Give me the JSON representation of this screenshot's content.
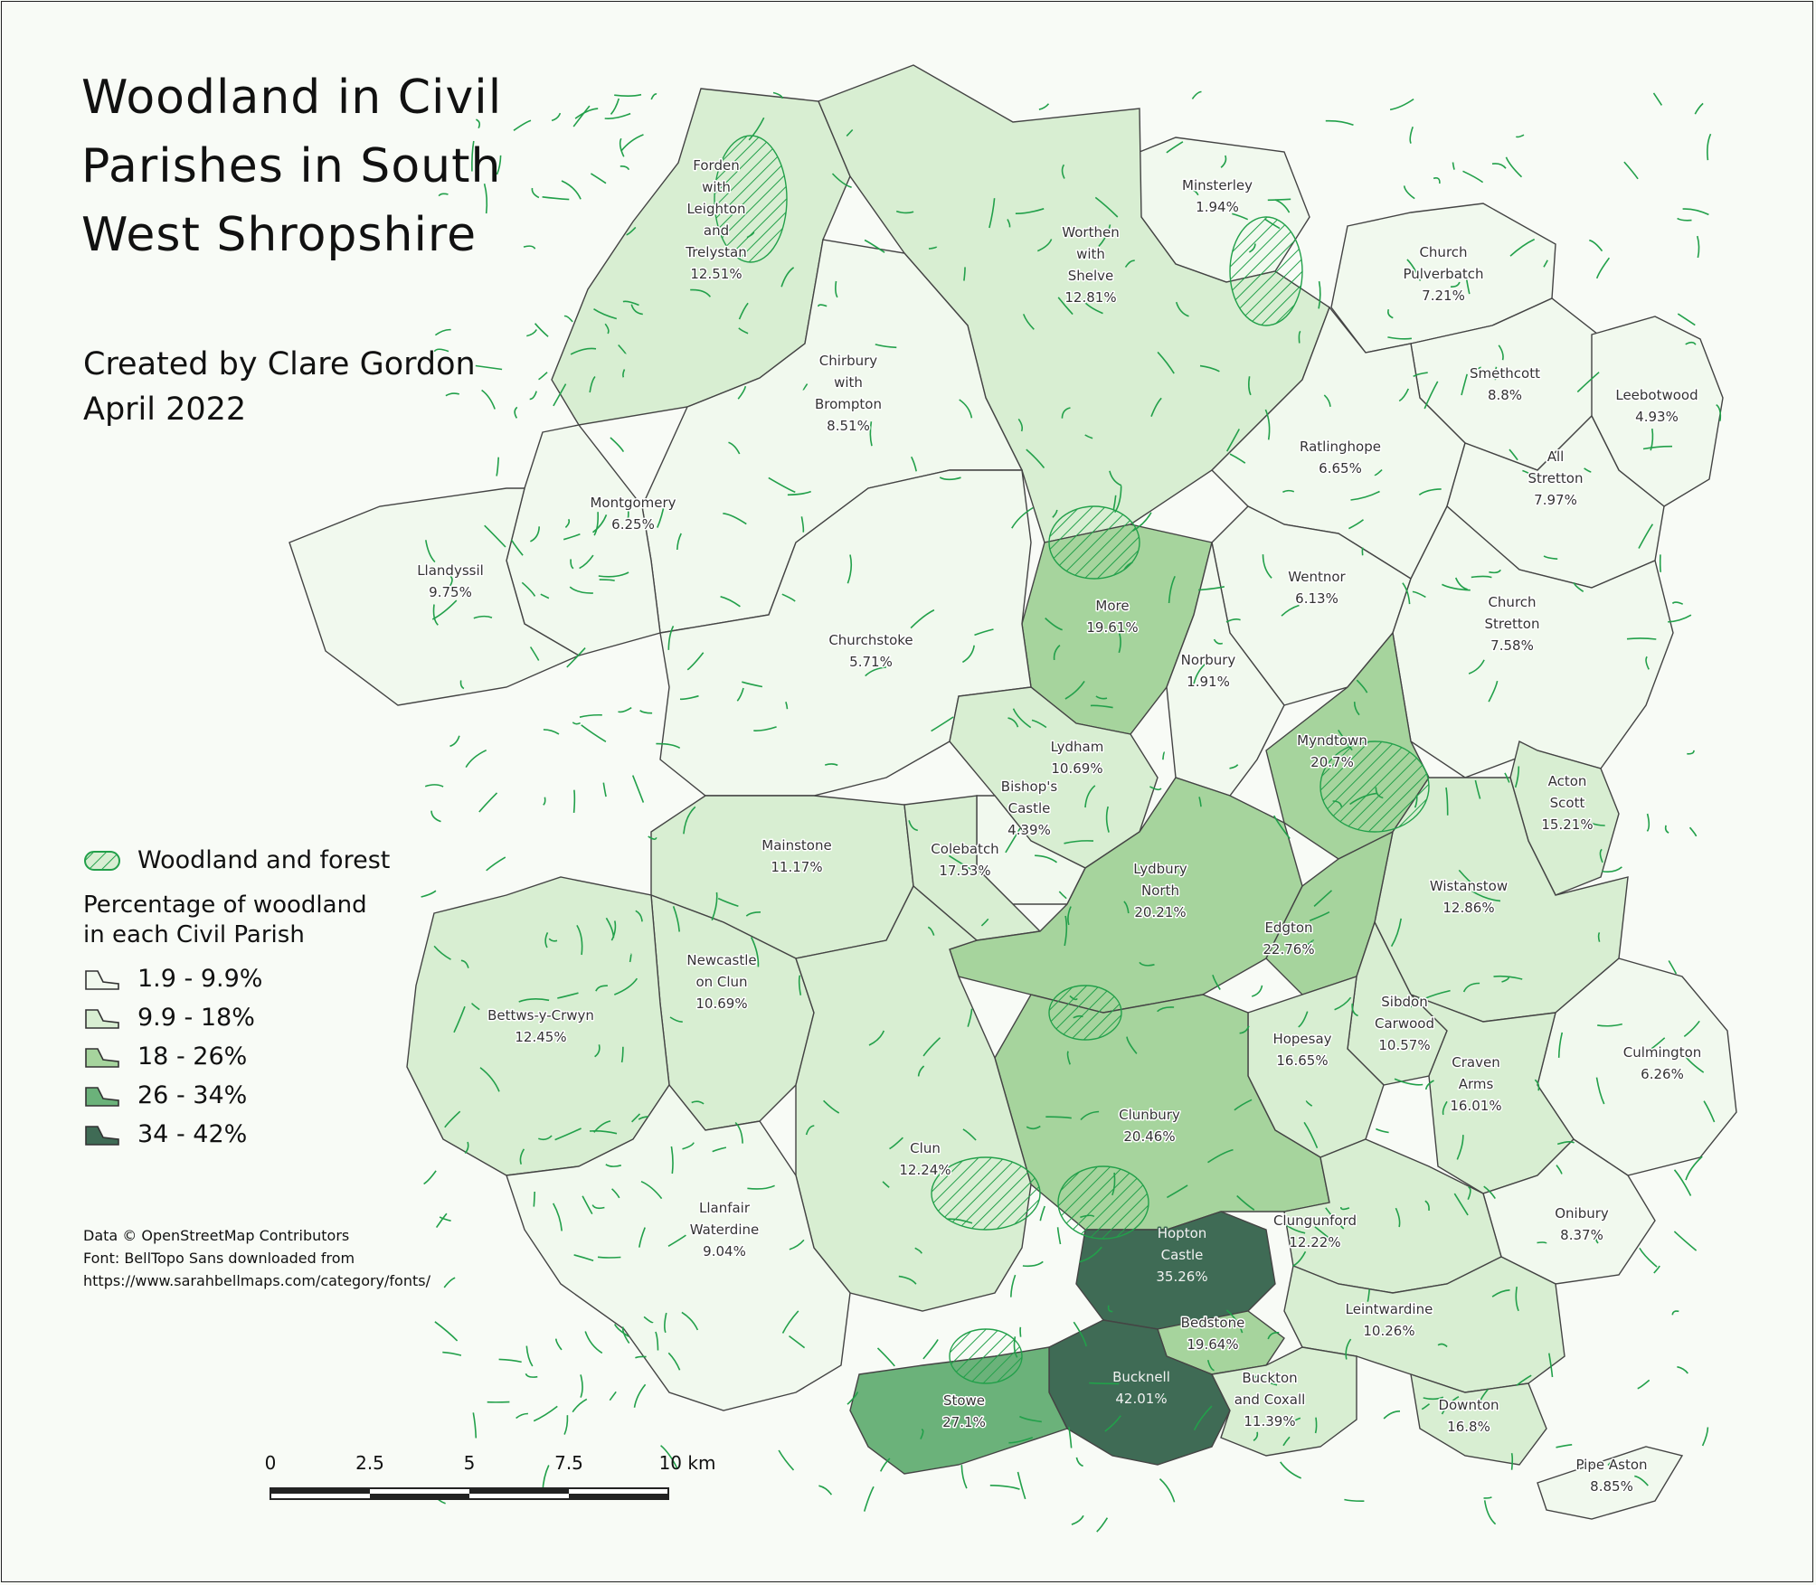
{
  "title_lines": [
    "Woodland in Civil",
    "Parishes in South",
    "West Shropshire"
  ],
  "credit_lines": [
    "Created by Clare Gordon",
    "April 2022"
  ],
  "legend": {
    "woodland_label": "Woodland and forest",
    "heading_lines": [
      "Percentage of woodland",
      "in each Civil Parish"
    ],
    "classes": [
      {
        "label": "1.9 - 9.9%",
        "color": "#f1f9ee"
      },
      {
        "label": "9.9 - 18%",
        "color": "#d8eed2"
      },
      {
        "label": "18 - 26%",
        "color": "#a6d49d"
      },
      {
        "label": "26 - 34%",
        "color": "#6bb27a"
      },
      {
        "label": "34 - 42%",
        "color": "#3f6b55"
      }
    ],
    "hatch_color": "#22a04a"
  },
  "source_lines": [
    "Data © OpenStreetMap Contributors",
    "Font: BellTopo Sans downloaded from",
    "https://www.sarahbellmaps.com/category/fonts/"
  ],
  "scale_bar": {
    "ticks": [
      "0",
      "2.5",
      "5",
      "7.5",
      "10 km"
    ]
  },
  "parishes": [
    {
      "id": "forden",
      "name_lines": [
        "Forden",
        "with",
        "Leighton",
        "and",
        "Trelystan"
      ],
      "pct": "12.51%",
      "value": 12.51
    },
    {
      "id": "minsterley",
      "name_lines": [
        "Minsterley"
      ],
      "pct": "1.94%",
      "value": 1.94
    },
    {
      "id": "worthen",
      "name_lines": [
        "Worthen",
        "with",
        "Shelve"
      ],
      "pct": "12.81%",
      "value": 12.81
    },
    {
      "id": "pulverbatch",
      "name_lines": [
        "Church",
        "Pulverbatch"
      ],
      "pct": "7.21%",
      "value": 7.21
    },
    {
      "id": "smethcott",
      "name_lines": [
        "Smethcott"
      ],
      "pct": "8.8%",
      "value": 8.8
    },
    {
      "id": "leebotwood",
      "name_lines": [
        "Leebotwood"
      ],
      "pct": "4.93%",
      "value": 4.93
    },
    {
      "id": "chirbury",
      "name_lines": [
        "Chirbury",
        "with",
        "Brompton"
      ],
      "pct": "8.51%",
      "value": 8.51
    },
    {
      "id": "ratlinghope",
      "name_lines": [
        "Ratlinghope"
      ],
      "pct": "6.65%",
      "value": 6.65
    },
    {
      "id": "allstretton",
      "name_lines": [
        "All",
        "Stretton"
      ],
      "pct": "7.97%",
      "value": 7.97
    },
    {
      "id": "montgomery",
      "name_lines": [
        "Montgomery"
      ],
      "pct": "6.25%",
      "value": 6.25
    },
    {
      "id": "llandyssil",
      "name_lines": [
        "Llandyssil"
      ],
      "pct": "9.75%",
      "value": 9.75
    },
    {
      "id": "more",
      "name_lines": [
        "More"
      ],
      "pct": "19.61%",
      "value": 19.61
    },
    {
      "id": "wentnor",
      "name_lines": [
        "Wentnor"
      ],
      "pct": "6.13%",
      "value": 6.13
    },
    {
      "id": "churchstretton",
      "name_lines": [
        "Church",
        "Stretton"
      ],
      "pct": "7.58%",
      "value": 7.58
    },
    {
      "id": "churchstoke",
      "name_lines": [
        "Churchstoke"
      ],
      "pct": "5.71%",
      "value": 5.71
    },
    {
      "id": "norbury",
      "name_lines": [
        "Norbury"
      ],
      "pct": "1.91%",
      "value": 1.91
    },
    {
      "id": "myndtown",
      "name_lines": [
        "Myndtown"
      ],
      "pct": "20.7%",
      "value": 20.7
    },
    {
      "id": "lydham",
      "name_lines": [
        "Lydham"
      ],
      "pct": "10.69%",
      "value": 10.69
    },
    {
      "id": "bishopscastle",
      "name_lines": [
        "Bishop's",
        "Castle"
      ],
      "pct": "4.39%",
      "value": 4.39
    },
    {
      "id": "actonscott",
      "name_lines": [
        "Acton",
        "Scott"
      ],
      "pct": "15.21%",
      "value": 15.21
    },
    {
      "id": "mainstone",
      "name_lines": [
        "Mainstone"
      ],
      "pct": "11.17%",
      "value": 11.17
    },
    {
      "id": "colebatch",
      "name_lines": [
        "Colebatch"
      ],
      "pct": "17.53%",
      "value": 17.53
    },
    {
      "id": "lydburynorth",
      "name_lines": [
        "Lydbury",
        "North"
      ],
      "pct": "20.21%",
      "value": 20.21
    },
    {
      "id": "wistanstow",
      "name_lines": [
        "Wistanstow"
      ],
      "pct": "12.86%",
      "value": 12.86
    },
    {
      "id": "edgton",
      "name_lines": [
        "Edgton"
      ],
      "pct": "22.76%",
      "value": 22.76
    },
    {
      "id": "newcastle",
      "name_lines": [
        "Newcastle",
        "on Clun"
      ],
      "pct": "10.69%",
      "value": 10.69
    },
    {
      "id": "bettws",
      "name_lines": [
        "Bettws-y-Crwyn"
      ],
      "pct": "12.45%",
      "value": 12.45
    },
    {
      "id": "sibdon",
      "name_lines": [
        "Sibdon",
        "Carwood"
      ],
      "pct": "10.57%",
      "value": 10.57
    },
    {
      "id": "hopesay",
      "name_lines": [
        "Hopesay"
      ],
      "pct": "16.65%",
      "value": 16.65
    },
    {
      "id": "culmington",
      "name_lines": [
        "Culmington"
      ],
      "pct": "6.26%",
      "value": 6.26
    },
    {
      "id": "craven",
      "name_lines": [
        "Craven",
        "Arms"
      ],
      "pct": "16.01%",
      "value": 16.01
    },
    {
      "id": "clunbury",
      "name_lines": [
        "Clunbury"
      ],
      "pct": "20.46%",
      "value": 20.46
    },
    {
      "id": "clun",
      "name_lines": [
        "Clun"
      ],
      "pct": "12.24%",
      "value": 12.24
    },
    {
      "id": "onibury",
      "name_lines": [
        "Onibury"
      ],
      "pct": "8.37%",
      "value": 8.37
    },
    {
      "id": "clungunford",
      "name_lines": [
        "Clungunford"
      ],
      "pct": "12.22%",
      "value": 12.22
    },
    {
      "id": "llanfair",
      "name_lines": [
        "Llanfair",
        "Waterdine"
      ],
      "pct": "9.04%",
      "value": 9.04
    },
    {
      "id": "hopton",
      "name_lines": [
        "Hopton",
        "Castle"
      ],
      "pct": "35.26%",
      "value": 35.26
    },
    {
      "id": "bedstone",
      "name_lines": [
        "Bedstone"
      ],
      "pct": "19.64%",
      "value": 19.64
    },
    {
      "id": "leintwardine",
      "name_lines": [
        "Leintwardine"
      ],
      "pct": "10.26%",
      "value": 10.26
    },
    {
      "id": "bucknell",
      "name_lines": [
        "Bucknell"
      ],
      "pct": "42.01%",
      "value": 42.01
    },
    {
      "id": "buckton",
      "name_lines": [
        "Buckton",
        "and Coxall"
      ],
      "pct": "11.39%",
      "value": 11.39
    },
    {
      "id": "stowe",
      "name_lines": [
        "Stowe"
      ],
      "pct": "27.1%",
      "value": 27.1
    },
    {
      "id": "downton",
      "name_lines": [
        "Downton"
      ],
      "pct": "16.8%",
      "value": 16.8
    },
    {
      "id": "pipeaston",
      "name_lines": [
        "Pipe Aston"
      ],
      "pct": "8.85%",
      "value": 8.85
    }
  ]
}
